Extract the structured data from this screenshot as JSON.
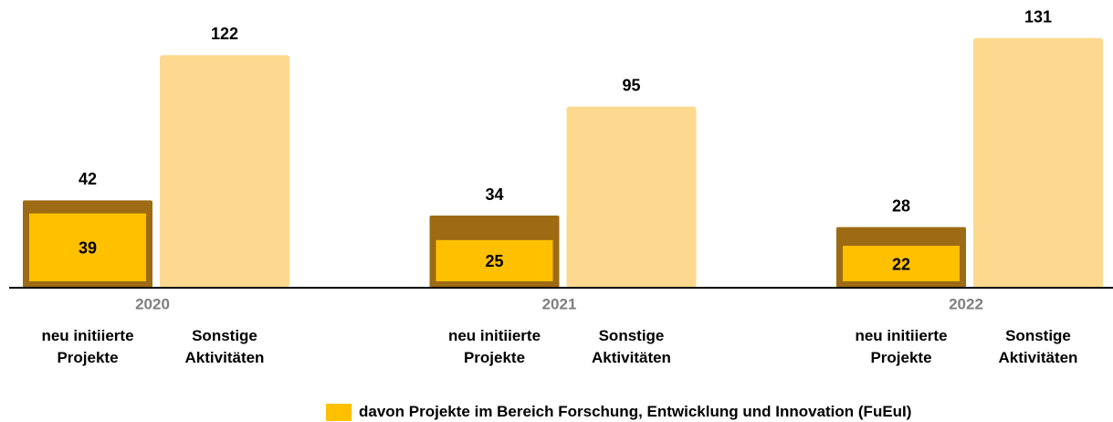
{
  "chart_data": {
    "type": "bar",
    "categories": [
      "2020",
      "2021",
      "2022"
    ],
    "series": [
      {
        "name": "neu initiierte Projekte",
        "color": "#9c6b14",
        "values": [
          42,
          34,
          28
        ]
      },
      {
        "name": "davon Projekte im Bereich Forschung, Entwicklung und Innovation (FuEuI)",
        "color": "#ffc000",
        "values": [
          39,
          25,
          22
        ]
      },
      {
        "name": "Sonstige Aktivitäten",
        "color": "#fcd98e",
        "values": [
          122,
          95,
          131
        ]
      }
    ],
    "ylim": [
      0,
      150
    ]
  }
}
